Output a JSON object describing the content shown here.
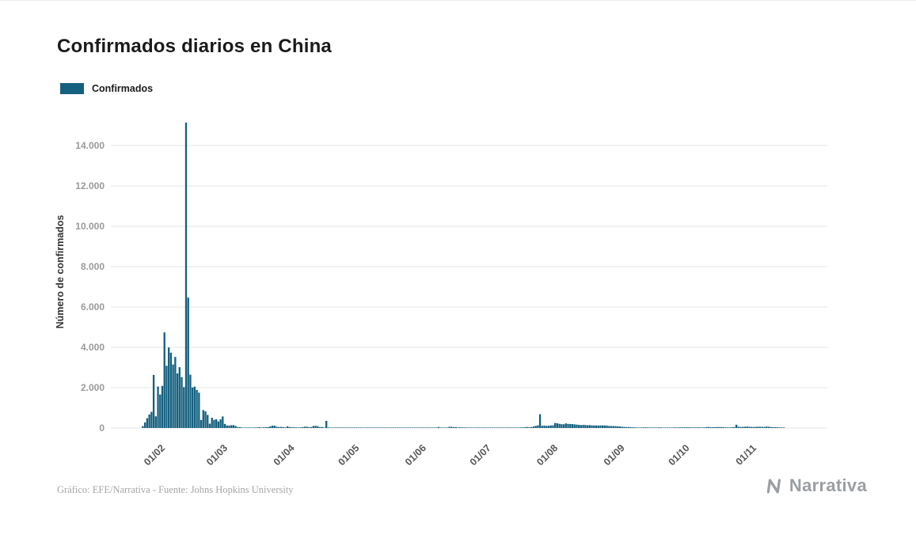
{
  "header": {
    "title": "Confirmados diarios en China"
  },
  "legend": {
    "label": "Confirmados",
    "color": "#15607f"
  },
  "footer": {
    "credit": "Gráfico: EFE/Narrativa - Fuente: Johns Hopkins University",
    "brand": "Narrativa"
  },
  "colors": {
    "bar": "#15607f",
    "grid": "#e6e6e6",
    "ytick_text": "#9a9a9a",
    "xtick_text": "#565656",
    "axis_label": "#333333"
  },
  "chart_data": {
    "type": "bar",
    "title": "Confirmados diarios en China",
    "series_name": "Confirmados",
    "xlabel": "",
    "ylabel": "Número de confirmados",
    "bar_color": "#15607f",
    "grid": true,
    "legend_position": "top-left",
    "ylim": [
      0,
      15200
    ],
    "yticks": [
      0,
      2000,
      4000,
      6000,
      8000,
      10000,
      12000,
      14000
    ],
    "ytick_labels": [
      "0",
      "2.000",
      "4.000",
      "6.000",
      "8.000",
      "10.000",
      "12.000",
      "14.000"
    ],
    "xtick_labels": [
      "01/02",
      "01/03",
      "01/04",
      "01/05",
      "01/06",
      "01/07",
      "01/08",
      "01/09",
      "01/10",
      "01/11"
    ],
    "x_start": "2020-01-23",
    "x_frequency": "daily",
    "peak": {
      "value": 15141,
      "approx_date": "2020-02-13"
    },
    "values": [
      95,
      277,
      486,
      669,
      802,
      2632,
      578,
      2054,
      1661,
      2089,
      4739,
      3086,
      3991,
      3733,
      3147,
      3523,
      2704,
      3015,
      2525,
      2028,
      15141,
      6463,
      2641,
      2009,
      2051,
      1891,
      1752,
      395,
      889,
      823,
      648,
      214,
      508,
      406,
      433,
      327,
      427,
      573,
      202,
      125,
      119,
      139,
      143,
      99,
      44,
      40,
      19,
      24,
      15,
      20,
      11,
      13,
      27,
      29,
      39,
      26,
      34,
      39,
      46,
      78,
      113,
      114,
      67,
      47,
      54,
      45,
      31,
      79,
      48,
      36,
      35,
      31,
      19,
      32,
      39,
      62,
      63,
      42,
      46,
      99,
      108,
      89,
      46,
      50,
      26,
      352,
      27,
      16,
      12,
      11,
      6,
      10,
      12,
      11,
      3,
      6,
      22,
      4,
      12,
      2,
      20,
      3,
      1,
      2,
      2,
      2,
      1,
      1,
      14,
      17,
      6,
      3,
      3,
      8,
      5,
      7,
      6,
      6,
      5,
      11,
      4,
      3,
      11,
      7,
      7,
      3,
      2,
      4,
      3,
      16,
      5,
      3,
      5,
      11,
      3,
      5,
      8,
      49,
      4,
      11,
      11,
      7,
      57,
      57,
      40,
      44,
      28,
      32,
      29,
      28,
      26,
      18,
      19,
      12,
      17,
      21,
      17,
      17,
      12,
      19,
      3,
      5,
      9,
      8,
      4,
      13,
      9,
      22,
      9,
      7,
      9,
      13,
      10,
      14,
      16,
      28,
      30,
      34,
      48,
      37,
      44,
      74,
      105,
      130,
      682,
      108,
      118,
      105,
      111,
      127,
      133,
      246,
      232,
      205,
      189,
      185,
      226,
      204,
      196,
      194,
      180,
      169,
      156,
      144,
      152,
      149,
      135,
      145,
      130,
      125,
      127,
      122,
      126,
      127,
      124,
      120,
      101,
      97,
      95,
      93,
      82,
      77,
      60,
      55,
      47,
      50,
      42,
      36,
      30,
      25,
      22,
      27,
      30,
      32,
      28,
      25,
      22,
      27,
      24,
      31,
      28,
      22,
      18,
      19,
      21,
      24,
      28,
      25,
      30,
      32,
      31,
      33,
      35,
      32,
      30,
      28,
      31,
      33,
      30,
      27,
      31,
      42,
      51,
      39,
      38,
      41,
      48,
      45,
      43,
      39,
      32,
      30,
      28,
      35,
      49,
      161,
      59,
      52,
      58,
      64,
      70,
      62,
      54,
      49,
      57,
      63,
      60,
      55,
      54,
      71,
      60,
      45,
      42,
      39,
      36,
      30,
      28,
      25
    ]
  }
}
